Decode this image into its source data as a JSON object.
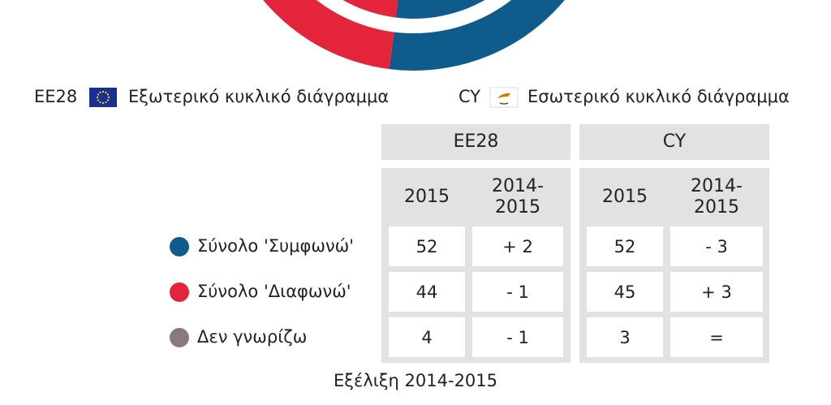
{
  "chart_data": {
    "type": "pie",
    "categories": [
      "Σύνολο 'Συμφωνώ'",
      "Σύνολο 'Διαφωνώ'",
      "Δεν γνωρίζω"
    ],
    "colors": [
      "#0f5b8c",
      "#e3243b",
      "#8a7a7f"
    ],
    "series": [
      {
        "name": "EE28",
        "ring": "Εξωτερικό κυκλικό διάγραμμα",
        "values": [
          52,
          44,
          4
        ]
      },
      {
        "name": "CY",
        "ring": "Εσωτερικό κυκλικό διάγραμμα",
        "values": [
          52,
          45,
          3
        ]
      }
    ]
  },
  "table": {
    "subheaders": [
      "2015",
      "2014-2015"
    ],
    "changes": [
      [
        "+ 2",
        "- 3"
      ],
      [
        "- 1",
        "+ 3"
      ],
      [
        "- 1",
        "="
      ]
    ],
    "footer": "Εξέλιξη 2014-2015"
  }
}
